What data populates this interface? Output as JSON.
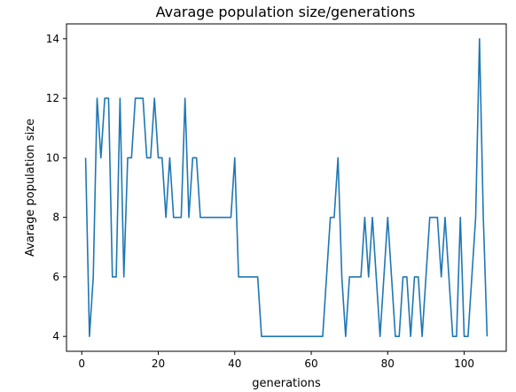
{
  "chart_data": {
    "type": "line",
    "title": "Avarage population size/generations",
    "xlabel": "generations",
    "ylabel": "Avarage population size",
    "xlim": [
      -4,
      111
    ],
    "ylim": [
      3.5,
      14.5
    ],
    "xticks": [
      0,
      20,
      40,
      60,
      80,
      100
    ],
    "yticks": [
      4,
      6,
      8,
      10,
      12,
      14
    ],
    "grid": false,
    "series_color": "#1f77b4",
    "x": [
      1,
      2,
      3,
      4,
      5,
      6,
      7,
      8,
      9,
      10,
      11,
      12,
      13,
      14,
      15,
      16,
      17,
      18,
      19,
      20,
      21,
      22,
      23,
      24,
      25,
      26,
      27,
      28,
      29,
      30,
      31,
      32,
      33,
      34,
      35,
      36,
      37,
      38,
      39,
      40,
      41,
      42,
      43,
      44,
      45,
      46,
      47,
      48,
      49,
      50,
      51,
      52,
      53,
      54,
      55,
      56,
      57,
      58,
      59,
      60,
      61,
      62,
      63,
      64,
      65,
      66,
      67,
      68,
      69,
      70,
      71,
      72,
      73,
      74,
      75,
      76,
      77,
      78,
      79,
      80,
      81,
      82,
      83,
      84,
      85,
      86,
      87,
      88,
      89,
      90,
      91,
      92,
      93,
      94,
      95,
      96,
      97,
      98,
      99,
      100,
      101,
      102,
      103,
      104,
      105,
      106
    ],
    "y": [
      10,
      4,
      6,
      12,
      10,
      12,
      12,
      6,
      6,
      12,
      6,
      10,
      10,
      12,
      12,
      12,
      10,
      10,
      12,
      10,
      10,
      8,
      10,
      8,
      8,
      8,
      12,
      8,
      10,
      10,
      8,
      8,
      8,
      8,
      8,
      8,
      8,
      8,
      8,
      10,
      6,
      6,
      6,
      6,
      6,
      6,
      4,
      4,
      4,
      4,
      4,
      4,
      4,
      4,
      4,
      4,
      4,
      4,
      4,
      4,
      4,
      4,
      4,
      6,
      8,
      8,
      10,
      6,
      4,
      6,
      6,
      6,
      6,
      8,
      6,
      8,
      6,
      4,
      6,
      8,
      6,
      4,
      4,
      6,
      6,
      4,
      6,
      6,
      4,
      6,
      8,
      8,
      8,
      6,
      8,
      6,
      4,
      4,
      8,
      4,
      4,
      6,
      8,
      14,
      8,
      4
    ]
  }
}
